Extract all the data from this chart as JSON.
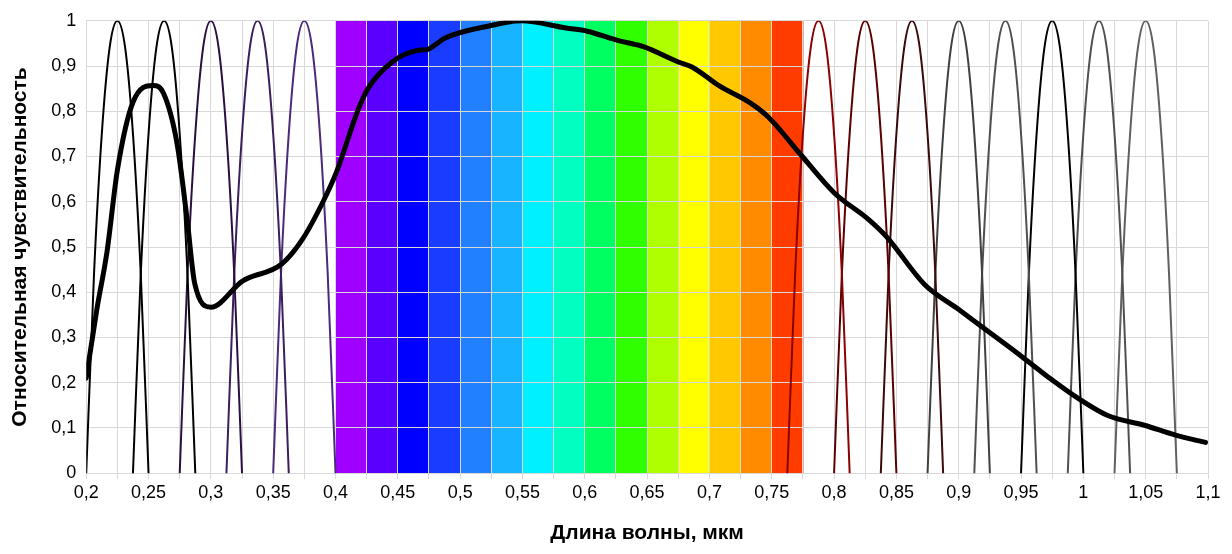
{
  "chart_data": {
    "type": "line",
    "xlabel": "Длина волны, мкм",
    "ylabel": "Относительная чувствительность",
    "grid": true,
    "xlim": [
      0.2,
      1.1
    ],
    "ylim": [
      0,
      1
    ],
    "xticks": [
      {
        "value": 0.2,
        "label": "0,2"
      },
      {
        "value": 0.225,
        "label": null
      },
      {
        "value": 0.25,
        "label": "0,25"
      },
      {
        "value": 0.275,
        "label": null
      },
      {
        "value": 0.3,
        "label": "0,3"
      },
      {
        "value": 0.325,
        "label": null
      },
      {
        "value": 0.35,
        "label": "0,35"
      },
      {
        "value": 0.375,
        "label": null
      },
      {
        "value": 0.4,
        "label": "0,4"
      },
      {
        "value": 0.425,
        "label": null
      },
      {
        "value": 0.45,
        "label": "0,45"
      },
      {
        "value": 0.475,
        "label": null
      },
      {
        "value": 0.5,
        "label": "0,5"
      },
      {
        "value": 0.525,
        "label": null
      },
      {
        "value": 0.55,
        "label": "0,55"
      },
      {
        "value": 0.575,
        "label": null
      },
      {
        "value": 0.6,
        "label": "0,6"
      },
      {
        "value": 0.625,
        "label": null
      },
      {
        "value": 0.65,
        "label": "0,65"
      },
      {
        "value": 0.675,
        "label": null
      },
      {
        "value": 0.7,
        "label": "0,7"
      },
      {
        "value": 0.725,
        "label": null
      },
      {
        "value": 0.75,
        "label": "0,75"
      },
      {
        "value": 0.775,
        "label": null
      },
      {
        "value": 0.8,
        "label": "0,8"
      },
      {
        "value": 0.825,
        "label": null
      },
      {
        "value": 0.85,
        "label": "0,85"
      },
      {
        "value": 0.875,
        "label": null
      },
      {
        "value": 0.9,
        "label": "0,9"
      },
      {
        "value": 0.925,
        "label": null
      },
      {
        "value": 0.95,
        "label": "0,95"
      },
      {
        "value": 0.975,
        "label": null
      },
      1,
      {
        "value": 1.025,
        "label": null
      },
      {
        "value": 1.05,
        "label": "1,05"
      },
      {
        "value": 1.075,
        "label": null
      },
      {
        "value": 1.1,
        "label": "1,1"
      }
    ],
    "yticks": [
      0,
      {
        "value": 0.1,
        "label": "0,1"
      },
      {
        "value": 0.2,
        "label": "0,2"
      },
      {
        "value": 0.3,
        "label": "0,3"
      },
      {
        "value": 0.4,
        "label": "0,4"
      },
      {
        "value": 0.5,
        "label": "0,5"
      },
      {
        "value": 0.6,
        "label": "0,6"
      },
      {
        "value": 0.7,
        "label": "0,7"
      },
      {
        "value": 0.8,
        "label": "0,8"
      },
      {
        "value": 0.9,
        "label": "0,9"
      },
      1
    ],
    "bands": [
      {
        "axis": "x",
        "from": 0.4,
        "to": 0.425,
        "color": "#a000ff"
      },
      {
        "axis": "x",
        "from": 0.425,
        "to": 0.45,
        "color": "#5a00ff"
      },
      {
        "axis": "x",
        "from": 0.45,
        "to": 0.475,
        "color": "#0000ff"
      },
      {
        "axis": "x",
        "from": 0.475,
        "to": 0.5,
        "color": "#1a3cff"
      },
      {
        "axis": "x",
        "from": 0.5,
        "to": 0.525,
        "color": "#2080ff"
      },
      {
        "axis": "x",
        "from": 0.525,
        "to": 0.55,
        "color": "#18b4ff"
      },
      {
        "axis": "x",
        "from": 0.55,
        "to": 0.575,
        "color": "#00f0ff"
      },
      {
        "axis": "x",
        "from": 0.575,
        "to": 0.6,
        "color": "#00ffc0"
      },
      {
        "axis": "x",
        "from": 0.6,
        "to": 0.625,
        "color": "#00ff60"
      },
      {
        "axis": "x",
        "from": 0.625,
        "to": 0.65,
        "color": "#30ff00"
      },
      {
        "axis": "x",
        "from": 0.65,
        "to": 0.675,
        "color": "#b0ff00"
      },
      {
        "axis": "x",
        "from": 0.675,
        "to": 0.7,
        "color": "#ffff00"
      },
      {
        "axis": "x",
        "from": 0.7,
        "to": 0.725,
        "color": "#ffc800"
      },
      {
        "axis": "x",
        "from": 0.725,
        "to": 0.75,
        "color": "#ff8c00"
      },
      {
        "axis": "x",
        "from": 0.75,
        "to": 0.775,
        "color": "#ff3c00"
      }
    ],
    "series": [
      {
        "type": "line",
        "color": "#000000",
        "x": [
          0.2,
          0.2084,
          0.2167,
          0.225,
          0.2375,
          0.2536,
          0.262,
          0.2728,
          0.281,
          0.287,
          0.3,
          0.3256,
          0.3566,
          0.373,
          0.39,
          0.401,
          0.4177,
          0.426,
          0.446,
          0.465,
          0.474,
          0.488,
          0.524,
          0.549,
          0.585,
          0.602,
          0.627,
          0.647,
          0.675,
          0.686,
          0.708,
          0.733,
          0.747,
          0.773,
          0.8,
          0.828,
          0.842,
          0.873,
          0.899,
          0.9175,
          0.951,
          0.965,
          0.974,
          0.995,
          1.02,
          1.049,
          1.074,
          1.098
        ],
        "values": [
          0.21,
          0.36,
          0.49,
          0.67,
          0.82,
          0.857,
          0.84,
          0.73,
          0.56,
          0.42,
          0.367,
          0.425,
          0.462,
          0.515,
          0.6,
          0.667,
          0.8,
          0.85,
          0.91,
          0.934,
          0.937,
          0.962,
          0.989,
          1,
          0.984,
          0.977,
          0.956,
          0.943,
          0.909,
          0.898,
          0.856,
          0.818,
          0.788,
          0.705,
          0.62,
          0.56,
          0.523,
          0.416,
          0.364,
          0.326,
          0.257,
          0.227,
          0.208,
          0.167,
          0.127,
          0.106,
          0.084,
          0.068
        ]
      },
      {
        "type": "line",
        "color": "#000000",
        "x": [
          0.2,
          0.20625,
          0.2125,
          0.21875,
          0.225,
          0.23125,
          0.2375,
          0.24375,
          0.25
        ],
        "values": [
          0,
          0.44,
          0.75,
          0.94,
          1,
          0.94,
          0.75,
          0.44,
          0
        ]
      },
      {
        "type": "line",
        "color": "#000000",
        "x": [
          0.2375,
          0.24375,
          0.25,
          0.25625,
          0.2625,
          0.26875,
          0.275,
          0.28125,
          0.2875
        ],
        "values": [
          0,
          0.44,
          0.75,
          0.94,
          1,
          0.94,
          0.75,
          0.44,
          0
        ]
      },
      {
        "type": "line",
        "color": "#2a1040",
        "x": [
          0.275,
          0.28125,
          0.2875,
          0.29375,
          0.3,
          0.30625,
          0.3125,
          0.31875,
          0.325
        ],
        "values": [
          0,
          0.44,
          0.75,
          0.94,
          1,
          0.94,
          0.75,
          0.44,
          0
        ]
      },
      {
        "type": "line",
        "color": "#3a1f5c",
        "x": [
          0.3125,
          0.31875,
          0.325,
          0.33125,
          0.3375,
          0.34375,
          0.35,
          0.35625,
          0.3625
        ],
        "values": [
          0,
          0.44,
          0.75,
          0.94,
          1,
          0.94,
          0.75,
          0.44,
          0
        ]
      },
      {
        "type": "line",
        "color": "#4b2a7a",
        "x": [
          0.35,
          0.35625,
          0.3625,
          0.36875,
          0.375,
          0.38125,
          0.3875,
          0.39375,
          0.4
        ],
        "values": [
          0,
          0.44,
          0.75,
          0.94,
          1,
          0.94,
          0.75,
          0.44,
          0
        ]
      },
      {
        "type": "line",
        "color": "#8b0000",
        "x": [
          0.7625,
          0.76875,
          0.775,
          0.78125,
          0.7875,
          0.79375,
          0.8,
          0.80625,
          0.8125
        ],
        "values": [
          0,
          0.44,
          0.75,
          0.94,
          1,
          0.94,
          0.75,
          0.44,
          0
        ]
      },
      {
        "type": "line",
        "color": "#5a0000",
        "x": [
          0.8,
          0.80625,
          0.8125,
          0.81875,
          0.825,
          0.83125,
          0.8375,
          0.84375,
          0.85
        ],
        "values": [
          0,
          0.44,
          0.75,
          0.94,
          1,
          0.94,
          0.75,
          0.44,
          0
        ]
      },
      {
        "type": "line",
        "color": "#3a0a0a",
        "x": [
          0.8375,
          0.84375,
          0.85,
          0.85625,
          0.8625,
          0.86875,
          0.875,
          0.88125,
          0.8875
        ],
        "values": [
          0,
          0.44,
          0.75,
          0.94,
          1,
          0.94,
          0.75,
          0.44,
          0
        ]
      },
      {
        "type": "line",
        "color": "#404040",
        "x": [
          0.875,
          0.88125,
          0.8875,
          0.89375,
          0.9,
          0.90625,
          0.9125,
          0.91875,
          0.925
        ],
        "values": [
          0,
          0.44,
          0.75,
          0.94,
          1,
          0.94,
          0.75,
          0.44,
          0
        ]
      },
      {
        "type": "line",
        "color": "#505050",
        "x": [
          0.9125,
          0.91875,
          0.925,
          0.93125,
          0.9375,
          0.94375,
          0.95,
          0.95625,
          0.9625
        ],
        "values": [
          0,
          0.44,
          0.75,
          0.94,
          1,
          0.94,
          0.75,
          0.44,
          0
        ]
      },
      {
        "type": "line",
        "color": "#000000",
        "x": [
          0.95,
          0.95625,
          0.9625,
          0.96875,
          0.975,
          0.98125,
          0.9875,
          0.99375,
          1
        ],
        "values": [
          0,
          0.44,
          0.75,
          0.94,
          1,
          0.94,
          0.75,
          0.44,
          0
        ]
      },
      {
        "type": "line",
        "color": "#505050",
        "x": [
          0.9875,
          0.99375,
          1,
          1.00625,
          1.0125,
          1.01875,
          1.025,
          1.03125,
          1.0375
        ],
        "values": [
          0,
          0.44,
          0.75,
          0.94,
          1,
          0.94,
          0.75,
          0.44,
          0
        ]
      },
      {
        "type": "line",
        "color": "#606060",
        "x": [
          1.025,
          1.03125,
          1.0375,
          1.04375,
          1.05,
          1.05625,
          1.0625,
          1.06875,
          1.075
        ],
        "values": [
          0,
          0.44,
          0.75,
          0.94,
          1,
          0.94,
          0.75,
          0.44,
          0
        ]
      }
    ]
  }
}
